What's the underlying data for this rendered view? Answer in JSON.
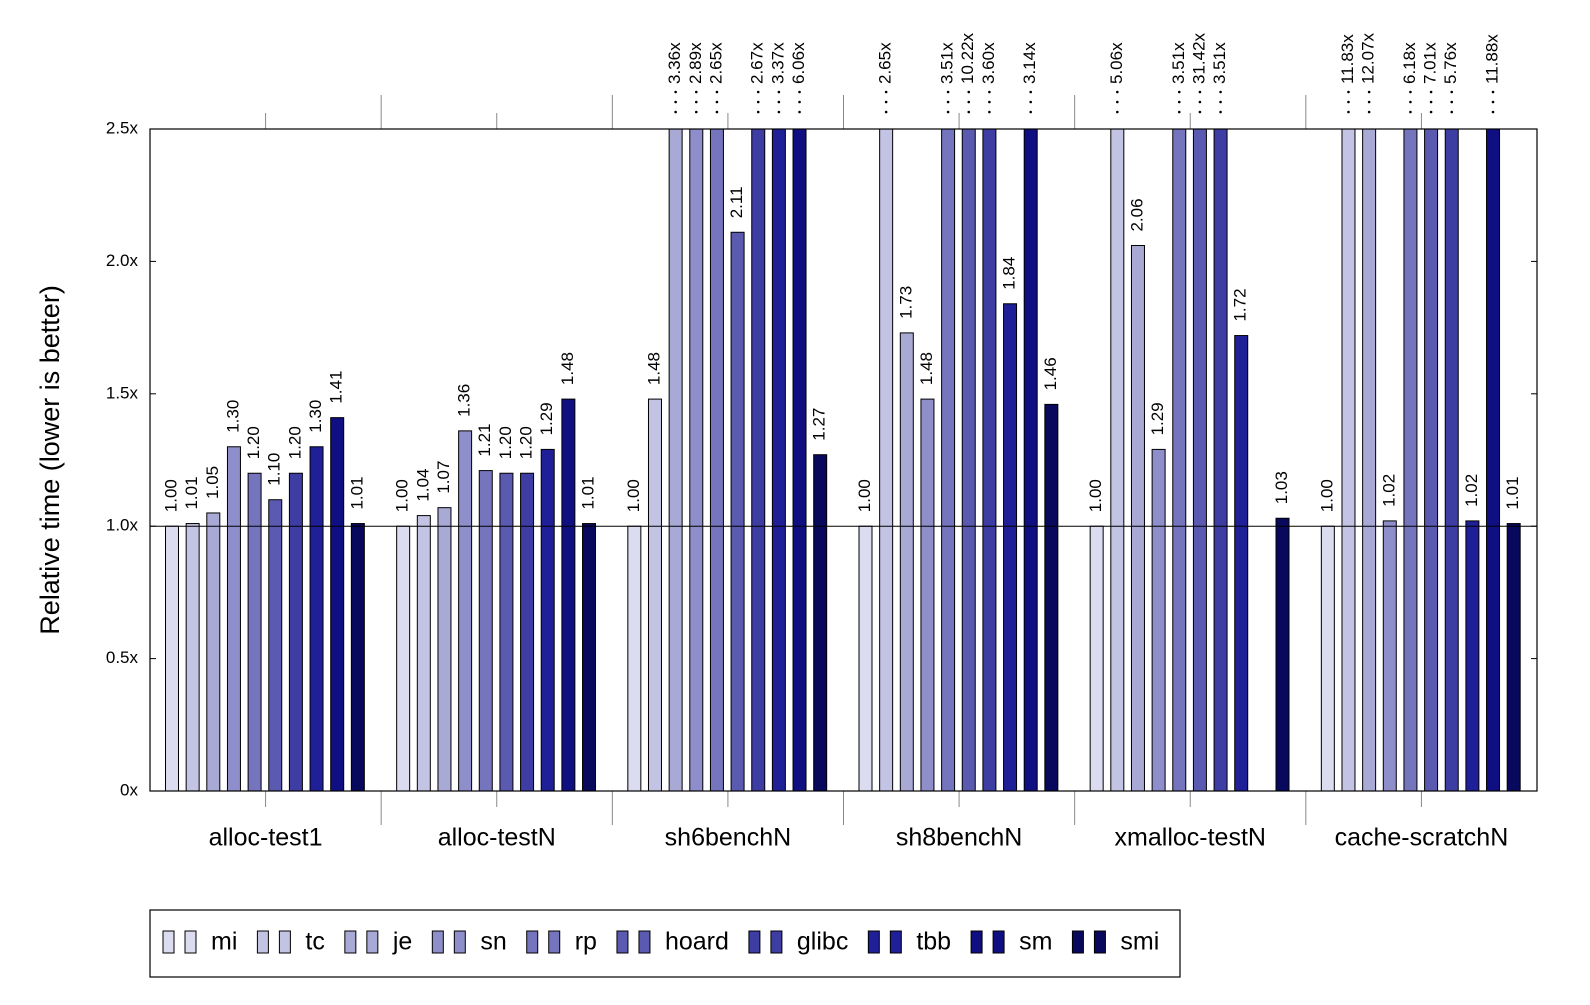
{
  "chart_data": {
    "type": "bar",
    "y_label": "Relative time (lower is better)",
    "categories": [
      "alloc-test1",
      "alloc-testN",
      "sh6benchN",
      "sh8benchN",
      "xmalloc-testN",
      "cache-scratchN"
    ],
    "ylim": [
      0,
      2.5
    ],
    "yticks": [
      {
        "value": 0,
        "label": "0x"
      },
      {
        "value": 0.5,
        "label": "0.5x"
      },
      {
        "value": 1,
        "label": "1.0x"
      },
      {
        "value": 1.5,
        "label": "1.5x"
      },
      {
        "value": 2,
        "label": "2.0x"
      },
      {
        "value": 2.5,
        "label": "2.5x"
      }
    ],
    "reference_line": 1,
    "series": [
      {
        "name": "mi",
        "color": "#dcdcf0",
        "values": [
          1.0,
          1.0,
          1.0,
          1.0,
          1.0,
          1.0
        ],
        "value_labels": [
          "1.00",
          "1.00",
          "1.00",
          "1.00",
          "1.00",
          "1.00"
        ]
      },
      {
        "name": "tc",
        "color": "#c3c3e3",
        "values": [
          1.01,
          1.04,
          1.48,
          2.65,
          5.06,
          11.83
        ],
        "value_labels": [
          "1.01",
          "1.04",
          "1.48",
          "2.65x",
          "5.06x",
          "11.83x"
        ]
      },
      {
        "name": "je",
        "color": "#a9a9d6",
        "values": [
          1.05,
          1.07,
          3.36,
          1.73,
          2.06,
          12.07
        ],
        "value_labels": [
          "1.05",
          "1.07",
          "3.36x",
          "1.73",
          "2.06",
          "12.07x"
        ]
      },
      {
        "name": "sn",
        "color": "#8e8eca",
        "values": [
          1.3,
          1.36,
          2.89,
          1.48,
          1.29,
          1.02
        ],
        "value_labels": [
          "1.30",
          "1.36",
          "2.89x",
          "1.48",
          "1.29",
          "1.02"
        ]
      },
      {
        "name": "rp",
        "color": "#7575bd",
        "values": [
          1.2,
          1.21,
          2.65,
          3.51,
          3.51,
          6.18
        ],
        "value_labels": [
          "1.20",
          "1.21",
          "2.65x",
          "3.51x",
          "3.51x",
          "6.18x"
        ]
      },
      {
        "name": "hoard",
        "color": "#5a5ab0",
        "values": [
          1.1,
          1.2,
          2.11,
          10.22,
          31.42,
          7.01
        ],
        "value_labels": [
          "1.10",
          "1.20",
          "2.11",
          "10.22x",
          "31.42x",
          "7.01x"
        ]
      },
      {
        "name": "glibc",
        "color": "#3d3da3",
        "values": [
          1.2,
          1.2,
          2.67,
          3.6,
          3.51,
          5.76
        ],
        "value_labels": [
          "1.20",
          "1.20",
          "2.67x",
          "3.60x",
          "3.51x",
          "5.76x"
        ]
      },
      {
        "name": "tbb",
        "color": "#1f1f98",
        "values": [
          1.3,
          1.29,
          3.37,
          1.84,
          1.72,
          1.02
        ],
        "value_labels": [
          "1.30",
          "1.29",
          "3.37x",
          "1.84",
          "1.72",
          "1.02"
        ]
      },
      {
        "name": "sm",
        "color": "#0f0f82",
        "values": [
          1.41,
          1.48,
          6.06,
          3.14,
          null,
          11.88
        ],
        "value_labels": [
          "1.41",
          "1.48",
          "6.06x",
          "3.14x",
          null,
          "11.88x"
        ]
      },
      {
        "name": "smi",
        "color": "#08085c",
        "values": [
          1.01,
          1.01,
          1.27,
          1.46,
          1.03,
          1.01
        ],
        "value_labels": [
          "1.01",
          "1.01",
          "1.27",
          "1.46",
          "1.03",
          "1.01"
        ]
      }
    ]
  }
}
